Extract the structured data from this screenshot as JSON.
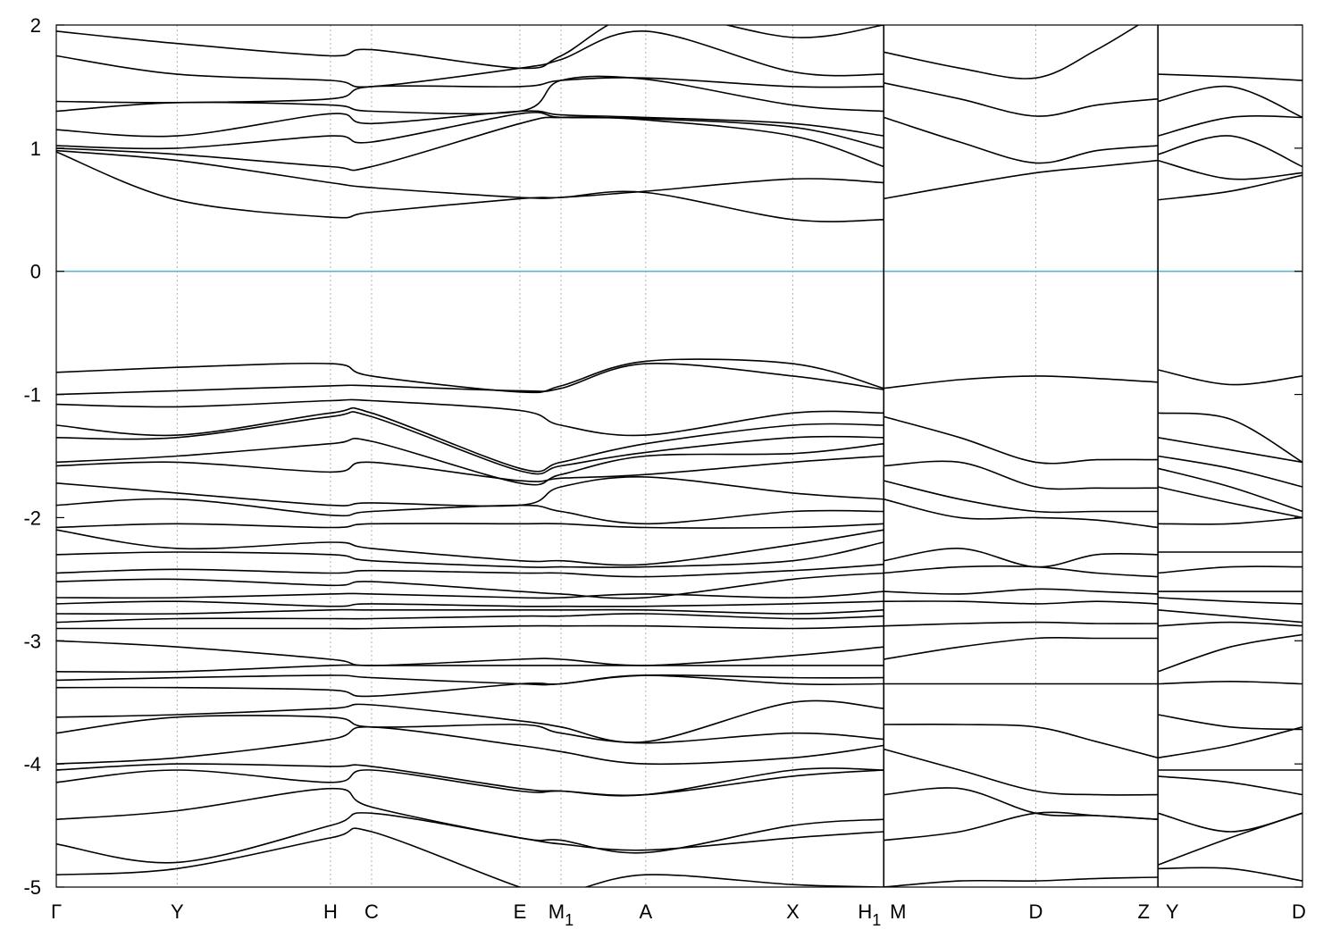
{
  "chart_data": {
    "type": "line",
    "title": "",
    "xlabel": "",
    "ylabel": "",
    "ylim": [
      -5,
      2
    ],
    "yticks": [
      2,
      1,
      0,
      -1,
      -2,
      -3,
      -4,
      -5
    ],
    "fermi_level": 0,
    "fermi_color": "#5fb3c8",
    "band_color": "#000000",
    "grid": "vertical dotted at k-points",
    "kpoints": [
      {
        "label": "Γ",
        "sub": "",
        "pos": 0.0
      },
      {
        "label": "Y",
        "sub": "",
        "pos": 0.097
      },
      {
        "label": "H",
        "sub": "",
        "pos": 0.22
      },
      {
        "label": "C",
        "sub": "",
        "pos": 0.253
      },
      {
        "label": "E",
        "sub": "",
        "pos": 0.372
      },
      {
        "label": "M",
        "sub": "1",
        "pos": 0.405
      },
      {
        "label": "A",
        "sub": "",
        "pos": 0.473
      },
      {
        "label": "X",
        "sub": "",
        "pos": 0.591
      },
      {
        "label": "H",
        "sub": "1",
        "pos": 0.664
      },
      {
        "label": "M",
        "sub": "",
        "pos": 0.664
      },
      {
        "label": "D",
        "sub": "",
        "pos": 0.786
      },
      {
        "label": "Z",
        "sub": "",
        "pos": 0.884
      },
      {
        "label": "Y",
        "sub": "",
        "pos": 0.884
      },
      {
        "label": "D",
        "sub": "",
        "pos": 1.0
      }
    ],
    "segments": [
      {
        "x": [
          0,
          0.097,
          0.22,
          0.253,
          0.372,
          0.405,
          0.473,
          0.591,
          0.664
        ],
        "series": [
          {
            "values": [
              1.95,
              1.85,
              1.75,
              1.8,
              1.65,
              1.75,
              2.1,
              1.9,
              2.0
            ]
          },
          {
            "values": [
              1.75,
              1.6,
              1.55,
              1.5,
              1.65,
              1.72,
              1.95,
              1.62,
              1.6
            ]
          },
          {
            "values": [
              1.38,
              1.37,
              1.4,
              1.5,
              1.5,
              1.55,
              1.57,
              1.5,
              1.5
            ]
          },
          {
            "values": [
              1.3,
              1.37,
              1.35,
              1.3,
              1.3,
              1.55,
              1.56,
              1.35,
              1.3
            ]
          },
          {
            "values": [
              1.15,
              1.1,
              1.28,
              1.2,
              1.3,
              1.27,
              1.25,
              1.2,
              1.1
            ]
          },
          {
            "values": [
              1.02,
              1.0,
              1.1,
              1.05,
              1.28,
              1.25,
              1.24,
              1.17,
              1.0
            ]
          },
          {
            "values": [
              1.0,
              0.95,
              0.85,
              0.85,
              1.2,
              1.25,
              1.23,
              1.1,
              0.85
            ]
          },
          {
            "values": [
              0.98,
              0.9,
              0.72,
              0.68,
              0.6,
              0.6,
              0.65,
              0.75,
              0.72
            ]
          },
          {
            "values": [
              0.97,
              0.58,
              0.44,
              0.48,
              0.59,
              0.6,
              0.64,
              0.42,
              0.42
            ]
          },
          {
            "values": [
              -0.82,
              -0.78,
              -0.75,
              -0.85,
              -0.98,
              -0.93,
              -0.73,
              -0.75,
              -0.95
            ]
          },
          {
            "values": [
              -1.0,
              -0.97,
              -0.93,
              -0.93,
              -0.97,
              -0.95,
              -0.75,
              -0.85,
              -0.96
            ]
          },
          {
            "values": [
              -1.08,
              -1.1,
              -1.05,
              -1.05,
              -1.13,
              -1.25,
              -1.33,
              -1.15,
              -1.15
            ]
          },
          {
            "values": [
              -1.25,
              -1.33,
              -1.15,
              -1.15,
              -1.6,
              -1.55,
              -1.4,
              -1.25,
              -1.25
            ]
          },
          {
            "values": [
              -1.35,
              -1.35,
              -1.18,
              -1.18,
              -1.62,
              -1.58,
              -1.47,
              -1.35,
              -1.35
            ]
          },
          {
            "values": [
              -1.55,
              -1.5,
              -1.4,
              -1.38,
              -1.72,
              -1.65,
              -1.5,
              -1.48,
              -1.4
            ]
          },
          {
            "values": [
              -1.58,
              -1.55,
              -1.63,
              -1.55,
              -1.7,
              -1.68,
              -1.65,
              -1.55,
              -1.5
            ]
          },
          {
            "values": [
              -1.72,
              -1.8,
              -1.9,
              -1.88,
              -1.9,
              -1.75,
              -1.67,
              -1.8,
              -1.85
            ]
          },
          {
            "values": [
              -1.9,
              -1.85,
              -1.98,
              -1.95,
              -1.9,
              -1.95,
              -2.05,
              -1.95,
              -1.95
            ]
          },
          {
            "values": [
              -2.08,
              -2.05,
              -2.08,
              -2.05,
              -2.05,
              -2.05,
              -2.08,
              -2.08,
              -2.05
            ]
          },
          {
            "values": [
              -2.1,
              -2.25,
              -2.2,
              -2.25,
              -2.35,
              -2.35,
              -2.38,
              -2.22,
              -2.1
            ]
          },
          {
            "values": [
              -2.3,
              -2.28,
              -2.3,
              -2.35,
              -2.4,
              -2.4,
              -2.4,
              -2.35,
              -2.2
            ]
          },
          {
            "values": [
              -2.45,
              -2.42,
              -2.45,
              -2.43,
              -2.45,
              -2.45,
              -2.48,
              -2.43,
              -2.38
            ]
          },
          {
            "values": [
              -2.52,
              -2.5,
              -2.55,
              -2.52,
              -2.6,
              -2.62,
              -2.65,
              -2.5,
              -2.45
            ]
          },
          {
            "values": [
              -2.65,
              -2.65,
              -2.62,
              -2.62,
              -2.65,
              -2.65,
              -2.62,
              -2.65,
              -2.6
            ]
          },
          {
            "values": [
              -2.7,
              -2.68,
              -2.72,
              -2.7,
              -2.72,
              -2.72,
              -2.72,
              -2.7,
              -2.68
            ]
          },
          {
            "values": [
              -2.78,
              -2.78,
              -2.75,
              -2.75,
              -2.75,
              -2.75,
              -2.75,
              -2.78,
              -2.75
            ]
          },
          {
            "values": [
              -2.85,
              -2.82,
              -2.82,
              -2.82,
              -2.8,
              -2.8,
              -2.78,
              -2.82,
              -2.8
            ]
          },
          {
            "values": [
              -2.9,
              -2.9,
              -2.9,
              -2.9,
              -2.88,
              -2.88,
              -2.88,
              -2.9,
              -2.88
            ]
          },
          {
            "values": [
              -3.0,
              -3.05,
              -3.15,
              -3.2,
              -3.15,
              -3.15,
              -3.2,
              -3.12,
              -3.05
            ]
          },
          {
            "values": [
              -3.25,
              -3.25,
              -3.2,
              -3.2,
              -3.2,
              -3.2,
              -3.2,
              -3.2,
              -3.2
            ]
          },
          {
            "values": [
              -3.32,
              -3.3,
              -3.28,
              -3.3,
              -3.35,
              -3.35,
              -3.28,
              -3.3,
              -3.3
            ]
          },
          {
            "values": [
              -3.38,
              -3.38,
              -3.4,
              -3.45,
              -3.35,
              -3.35,
              -3.28,
              -3.35,
              -3.35
            ]
          },
          {
            "values": [
              -3.62,
              -3.6,
              -3.55,
              -3.52,
              -3.65,
              -3.7,
              -3.82,
              -3.5,
              -3.55
            ]
          },
          {
            "values": [
              -3.75,
              -3.62,
              -3.62,
              -3.7,
              -3.68,
              -3.75,
              -3.83,
              -3.75,
              -3.8
            ]
          },
          {
            "values": [
              -4.0,
              -3.95,
              -3.8,
              -3.7,
              -3.85,
              -3.9,
              -4.0,
              -3.95,
              -3.85
            ]
          },
          {
            "values": [
              -4.05,
              -4.0,
              -4.02,
              -4.02,
              -4.2,
              -4.22,
              -4.25,
              -4.05,
              -4.05
            ]
          },
          {
            "values": [
              -4.15,
              -4.05,
              -4.15,
              -4.05,
              -4.22,
              -4.22,
              -4.25,
              -4.1,
              -4.05
            ]
          },
          {
            "values": [
              -4.45,
              -4.38,
              -4.2,
              -4.35,
              -4.6,
              -4.62,
              -4.72,
              -4.5,
              -4.45
            ]
          },
          {
            "values": [
              -4.65,
              -4.8,
              -4.5,
              -4.4,
              -4.6,
              -4.65,
              -4.7,
              -4.6,
              -4.55
            ]
          },
          {
            "values": [
              -4.9,
              -4.85,
              -4.6,
              -4.55,
              -5.0,
              -5.05,
              -4.9,
              -4.98,
              -5.0
            ]
          }
        ]
      },
      {
        "x": [
          0.664,
          0.725,
          0.786,
          0.835,
          0.884
        ],
        "series": [
          {
            "values": [
              1.78,
              1.65,
              1.57,
              1.8,
              2.1
            ]
          },
          {
            "values": [
              1.53,
              1.4,
              1.26,
              1.35,
              1.4
            ]
          },
          {
            "values": [
              1.25,
              1.05,
              0.88,
              0.98,
              1.02
            ]
          },
          {
            "values": [
              0.59,
              0.7,
              0.8,
              0.85,
              0.9
            ]
          },
          {
            "values": [
              -0.95,
              -0.88,
              -0.85,
              -0.87,
              -0.9
            ]
          },
          {
            "values": [
              -1.18,
              -1.35,
              -1.55,
              -1.53,
              -1.53
            ]
          },
          {
            "values": [
              -1.58,
              -1.55,
              -1.75,
              -1.76,
              -1.76
            ]
          },
          {
            "values": [
              -1.7,
              -1.85,
              -1.95,
              -1.95,
              -1.95
            ]
          },
          {
            "values": [
              -1.85,
              -2.0,
              -2.0,
              -2.02,
              -2.08
            ]
          },
          {
            "values": [
              -2.35,
              -2.25,
              -2.4,
              -2.3,
              -2.3
            ]
          },
          {
            "values": [
              -2.45,
              -2.4,
              -2.4,
              -2.45,
              -2.48
            ]
          },
          {
            "values": [
              -2.6,
              -2.62,
              -2.58,
              -2.6,
              -2.62
            ]
          },
          {
            "values": [
              -2.68,
              -2.68,
              -2.7,
              -2.68,
              -2.7
            ]
          },
          {
            "values": [
              -2.88,
              -2.86,
              -2.85,
              -2.86,
              -2.86
            ]
          },
          {
            "values": [
              -3.15,
              -3.05,
              -2.98,
              -2.98,
              -2.98
            ]
          },
          {
            "values": [
              -3.35,
              -3.35,
              -3.35,
              -3.35,
              -3.35
            ]
          },
          {
            "values": [
              -3.68,
              -3.68,
              -3.7,
              -3.82,
              -3.95
            ]
          },
          {
            "values": [
              -3.88,
              -4.05,
              -4.22,
              -4.25,
              -4.25
            ]
          },
          {
            "values": [
              -4.25,
              -4.2,
              -4.4,
              -4.42,
              -4.45
            ]
          },
          {
            "values": [
              -4.62,
              -4.55,
              -4.4,
              -4.42,
              -4.45
            ]
          },
          {
            "values": [
              -5.0,
              -4.95,
              -4.95,
              -4.93,
              -4.92
            ]
          }
        ]
      },
      {
        "x": [
          0.884,
          0.942,
          1.0
        ],
        "series": [
          {
            "values": [
              1.6,
              1.58,
              1.55
            ]
          },
          {
            "values": [
              1.38,
              1.5,
              1.25
            ]
          },
          {
            "values": [
              1.1,
              1.25,
              1.25
            ]
          },
          {
            "values": [
              0.95,
              1.1,
              0.85
            ]
          },
          {
            "values": [
              0.9,
              0.75,
              0.8
            ]
          },
          {
            "values": [
              0.58,
              0.65,
              0.78
            ]
          },
          {
            "values": [
              -0.8,
              -0.92,
              -0.85
            ]
          },
          {
            "values": [
              -1.15,
              -1.2,
              -1.55
            ]
          },
          {
            "values": [
              -1.35,
              -1.45,
              -1.55
            ]
          },
          {
            "values": [
              -1.5,
              -1.6,
              -1.75
            ]
          },
          {
            "values": [
              -1.6,
              -1.75,
              -1.95
            ]
          },
          {
            "values": [
              -1.75,
              -1.88,
              -2.0
            ]
          },
          {
            "values": [
              -2.05,
              -2.05,
              -2.0
            ]
          },
          {
            "values": [
              -2.28,
              -2.28,
              -2.28
            ]
          },
          {
            "values": [
              -2.45,
              -2.4,
              -2.4
            ]
          },
          {
            "values": [
              -2.6,
              -2.6,
              -2.6
            ]
          },
          {
            "values": [
              -2.65,
              -2.68,
              -2.7
            ]
          },
          {
            "values": [
              -2.75,
              -2.8,
              -2.85
            ]
          },
          {
            "values": [
              -2.88,
              -2.85,
              -2.88
            ]
          },
          {
            "values": [
              -3.25,
              -3.05,
              -2.95
            ]
          },
          {
            "values": [
              -3.35,
              -3.33,
              -3.35
            ]
          },
          {
            "values": [
              -3.6,
              -3.7,
              -3.72
            ]
          },
          {
            "values": [
              -3.95,
              -3.85,
              -3.7
            ]
          },
          {
            "values": [
              -4.05,
              -4.05,
              -4.05
            ]
          },
          {
            "values": [
              -4.1,
              -4.15,
              -4.25
            ]
          },
          {
            "values": [
              -4.4,
              -4.55,
              -4.4
            ]
          },
          {
            "values": [
              -4.82,
              -4.6,
              -4.4
            ]
          },
          {
            "values": [
              -4.85,
              -4.85,
              -4.95
            ]
          }
        ]
      }
    ]
  }
}
